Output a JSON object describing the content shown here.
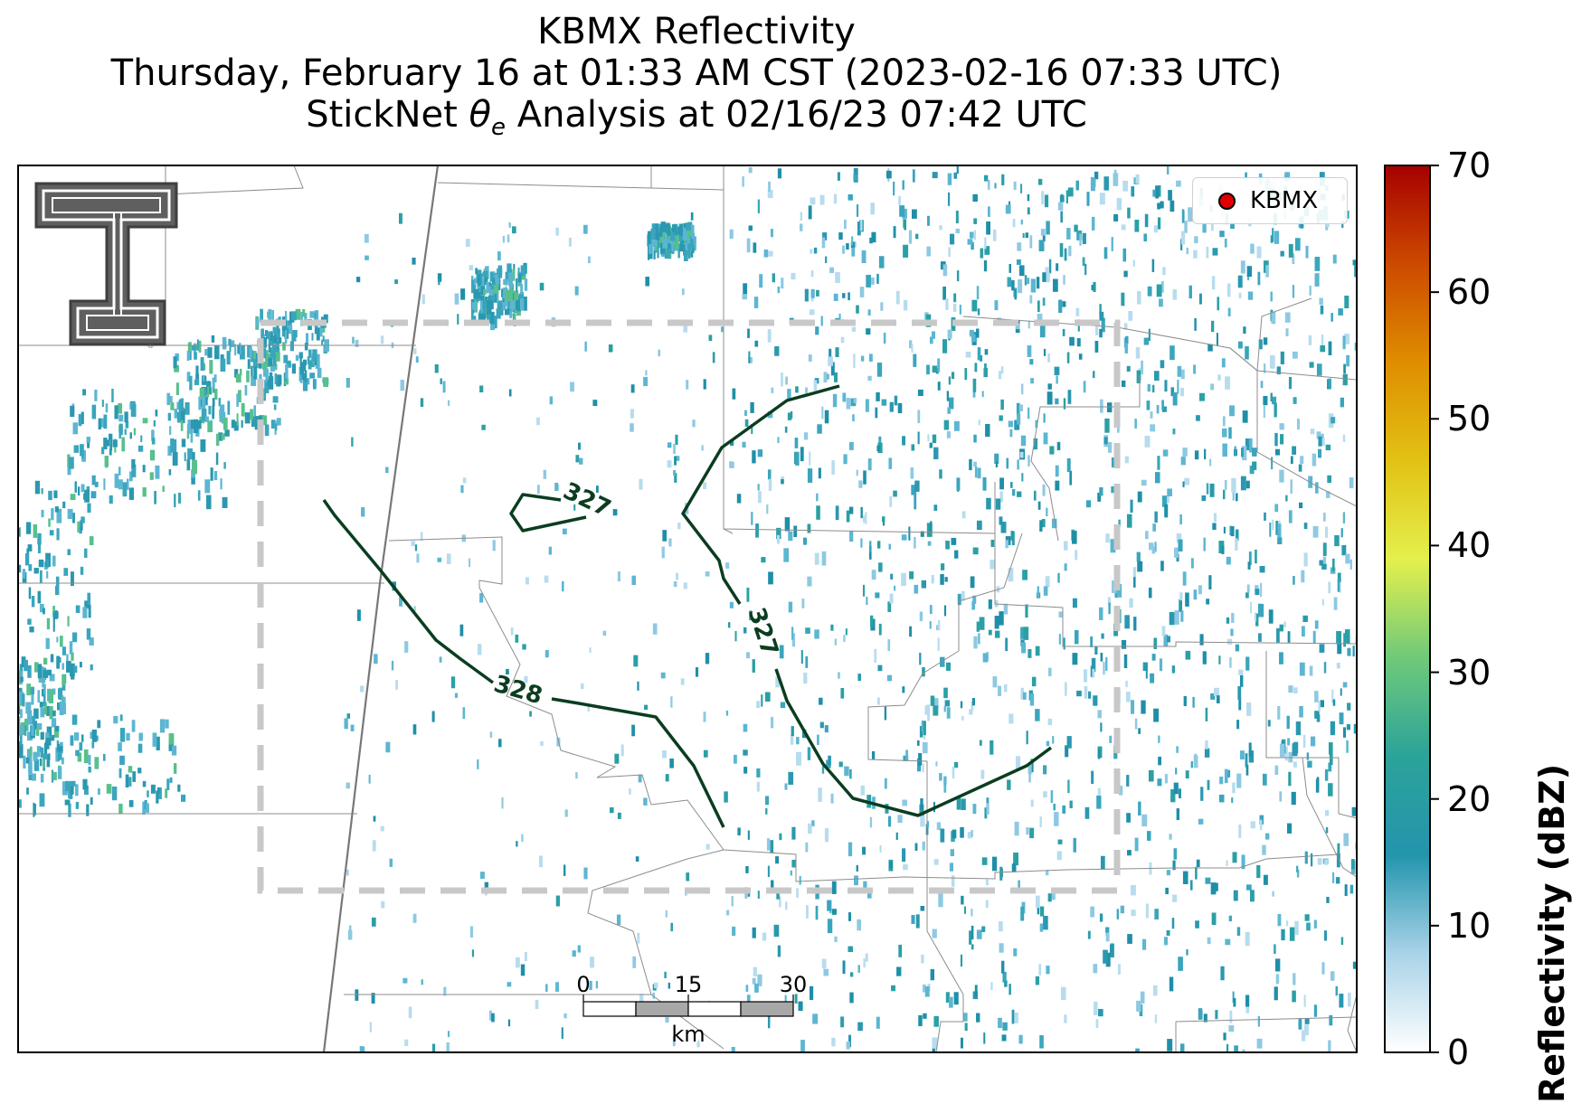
{
  "title": {
    "line1": "KBMX Reflectivity",
    "line2": "Thursday, February 16 at 01:33 AM CST (2023-02-16 07:33 UTC)",
    "line3_prefix": "StickNet ",
    "line3_symbol": "θ",
    "line3_subscript": "e",
    "line3_suffix": " Analysis at 02/16/23 07:42 UTC"
  },
  "legend": {
    "label": "KBMX",
    "marker_color": "#e00000"
  },
  "colorbar": {
    "label": "Reflectivity (dBZ)",
    "ticks": [
      "0",
      "10",
      "20",
      "30",
      "40",
      "50",
      "60",
      "70"
    ],
    "range": [
      0,
      70
    ],
    "colors": [
      "#ffffff",
      "#a9d3e8",
      "#2395ad",
      "#2ba39a",
      "#6fc979",
      "#e4f04d",
      "#e2c214",
      "#df8e00",
      "#cc4a00",
      "#a60000"
    ]
  },
  "contours": [
    {
      "label": "328",
      "color": "#0b3d20"
    },
    {
      "label": "327",
      "color": "#0b3d20"
    },
    {
      "label": "327",
      "color": "#0b3d20"
    }
  ],
  "scalebar": {
    "ticks": [
      "0",
      "15",
      "30"
    ],
    "unit": "km"
  },
  "icons": {
    "logo": "texas-tech-double-t-logo",
    "radar": "radar-site-marker"
  },
  "colors": {
    "analysis_box": "#c8c8c8",
    "county_lines": "#8c8c8c",
    "state_line": "#777777",
    "echo": "#2a98b0"
  }
}
